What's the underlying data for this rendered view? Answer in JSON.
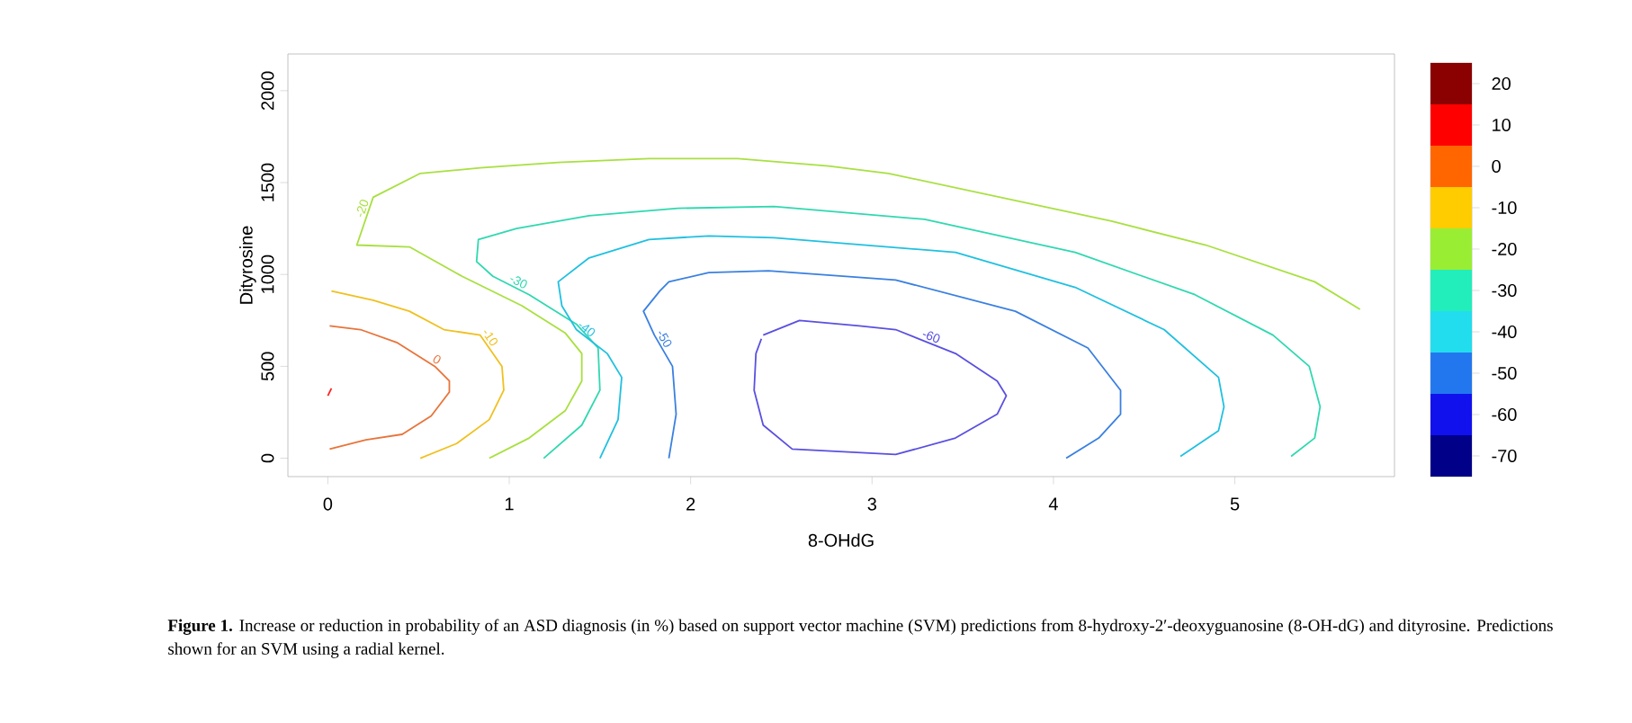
{
  "chart_data": {
    "type": "line",
    "xlabel": "8-OHdG",
    "ylabel": "Dityrosine",
    "xlim": [
      -0.22,
      5.88
    ],
    "ylim": [
      -100,
      2200
    ],
    "xticks": [
      0,
      1,
      2,
      3,
      4,
      5
    ],
    "yticks": [
      0,
      500,
      1000,
      1500,
      2000
    ],
    "clim": [
      -75,
      25
    ],
    "cticks": [
      20,
      10,
      0,
      -10,
      -20,
      -30,
      -40,
      -50,
      -60,
      -70
    ],
    "series": [
      {
        "name": "0",
        "color": "#e8743a",
        "x": [
          0.01,
          0.21,
          0.41,
          0.57,
          0.67,
          0.67,
          0.59,
          0.38,
          0.18,
          0.01
        ],
        "values": [
          50,
          100,
          130,
          230,
          360,
          420,
          500,
          630,
          700,
          720
        ]
      },
      {
        "name": "-10",
        "color": "#f0c020",
        "x": [
          0.51,
          0.71,
          0.89,
          0.97,
          0.96,
          0.84,
          0.64,
          0.45,
          0.25,
          0.02
        ],
        "values": [
          0,
          80,
          210,
          370,
          500,
          670,
          700,
          800,
          860,
          910
        ]
      },
      {
        "name": "-20",
        "color": "#a8e040",
        "x": [
          0.89,
          1.11,
          1.31,
          1.4,
          1.4,
          1.31,
          1.07,
          0.74,
          0.45,
          0.16,
          0.25,
          0.51,
          0.84,
          1.27,
          1.77,
          2.26,
          2.76,
          3.09,
          4.32,
          4.84,
          5.44,
          5.69
        ],
        "values": [
          0,
          110,
          260,
          420,
          570,
          680,
          830,
          990,
          1150,
          1160,
          1420,
          1550,
          1580,
          1610,
          1630,
          1630,
          1590,
          1550,
          1290,
          1160,
          960,
          810
        ]
      },
      {
        "name": "-30",
        "color": "#30d8b0",
        "x": [
          1.19,
          1.4,
          1.5,
          1.49,
          1.37,
          1.11,
          0.91,
          0.82,
          0.83,
          1.04,
          1.44,
          1.93,
          2.46,
          3.29,
          4.12,
          4.78,
          5.21,
          5.41,
          5.47,
          5.44,
          5.31
        ],
        "values": [
          0,
          180,
          370,
          600,
          730,
          890,
          990,
          1070,
          1190,
          1250,
          1320,
          1360,
          1370,
          1300,
          1120,
          890,
          670,
          500,
          280,
          110,
          10
        ]
      },
      {
        "name": "-40",
        "color": "#20c0e0",
        "x": [
          1.5,
          1.6,
          1.62,
          1.54,
          1.37,
          1.29,
          1.27,
          1.44,
          1.77,
          2.1,
          2.46,
          3.46,
          4.12,
          4.61,
          4.91,
          4.94,
          4.91,
          4.7
        ],
        "values": [
          0,
          210,
          440,
          570,
          700,
          830,
          960,
          1090,
          1190,
          1210,
          1200,
          1120,
          930,
          700,
          440,
          280,
          150,
          10
        ]
      },
      {
        "name": "-50",
        "color": "#3a80e0",
        "x": [
          1.88,
          1.92,
          1.9,
          1.8,
          1.74,
          1.83,
          1.88,
          2.1,
          2.43,
          3.13,
          3.79,
          4.19,
          4.37,
          4.37,
          4.25,
          4.07
        ],
        "values": [
          0,
          240,
          500,
          670,
          800,
          910,
          960,
          1010,
          1020,
          970,
          800,
          600,
          370,
          240,
          110,
          0
        ]
      },
      {
        "name": "-60",
        "color": "#5a50e0",
        "x": [
          2.4,
          2.6,
          2.93,
          3.13,
          3.46,
          3.69,
          3.74,
          3.69,
          3.46,
          3.13,
          2.56,
          2.4,
          2.35,
          2.36,
          2.39
        ],
        "values": [
          670,
          750,
          720,
          700,
          570,
          420,
          340,
          240,
          110,
          20,
          50,
          180,
          370,
          570,
          650
        ]
      },
      {
        "color": "#ff2020",
        "x": [
          0.0,
          0.02
        ],
        "values": [
          340,
          380
        ]
      }
    ],
    "annotations": [
      "**Figure 1.** Increase or reduction in probability of an ASD diagnosis (in %) based on support vector machine (SVM) predictions from 8-hydroxy-2′-deoxyguanosine (8-OH-dG) and dityrosine. Predictions shown for an SVM using a radial kernel."
    ]
  }
}
